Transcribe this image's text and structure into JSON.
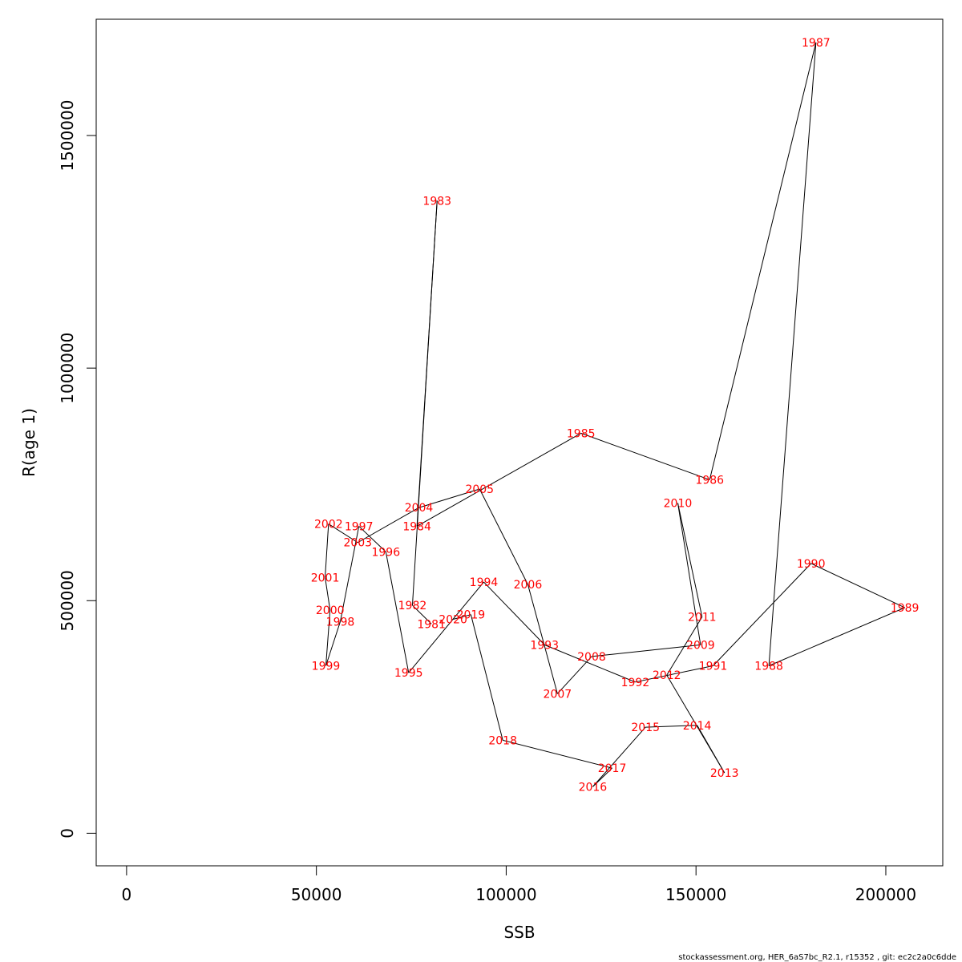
{
  "chart_data": {
    "type": "line",
    "xlabel": "SSB",
    "ylabel": "R(age 1)",
    "xlim": [
      -8000,
      215000
    ],
    "ylim": [
      -70000,
      1750000
    ],
    "xticks": [
      0,
      50000,
      100000,
      150000,
      200000
    ],
    "xtick_labels": [
      "0",
      "50000",
      "100000",
      "150000",
      "200000"
    ],
    "yticks": [
      0,
      500000,
      1000000,
      1500000
    ],
    "ytick_labels": [
      "0",
      "500000",
      "1000000",
      "1500000"
    ],
    "line_color": "#000000",
    "label_color": "#ff0000",
    "grid": false,
    "points": [
      {
        "year": "1981",
        "x": 80300,
        "y": 450000
      },
      {
        "year": "1982",
        "x": 75300,
        "y": 490000
      },
      {
        "year": "1983",
        "x": 81800,
        "y": 1360000
      },
      {
        "year": "1984",
        "x": 76500,
        "y": 660000
      },
      {
        "year": "1985",
        "x": 119700,
        "y": 860000
      },
      {
        "year": "1986",
        "x": 153600,
        "y": 760000
      },
      {
        "year": "1987",
        "x": 181600,
        "y": 1700000
      },
      {
        "year": "1988",
        "x": 169200,
        "y": 360000
      },
      {
        "year": "1989",
        "x": 205000,
        "y": 485000
      },
      {
        "year": "1990",
        "x": 180300,
        "y": 580000
      },
      {
        "year": "1991",
        "x": 154500,
        "y": 360000
      },
      {
        "year": "1992",
        "x": 134000,
        "y": 325000
      },
      {
        "year": "1993",
        "x": 110100,
        "y": 405000
      },
      {
        "year": "1994",
        "x": 94100,
        "y": 540000
      },
      {
        "year": "1995",
        "x": 74300,
        "y": 345000
      },
      {
        "year": "1996",
        "x": 68300,
        "y": 605000
      },
      {
        "year": "1997",
        "x": 61200,
        "y": 660000
      },
      {
        "year": "1998",
        "x": 56300,
        "y": 455000
      },
      {
        "year": "1999",
        "x": 52500,
        "y": 360000
      },
      {
        "year": "2000",
        "x": 53600,
        "y": 480000
      },
      {
        "year": "2001",
        "x": 52300,
        "y": 550000
      },
      {
        "year": "2002",
        "x": 53200,
        "y": 665000
      },
      {
        "year": "2003",
        "x": 60900,
        "y": 625000
      },
      {
        "year": "2004",
        "x": 77000,
        "y": 700000
      },
      {
        "year": "2005",
        "x": 93000,
        "y": 740000
      },
      {
        "year": "2006",
        "x": 105700,
        "y": 535000
      },
      {
        "year": "2007",
        "x": 113500,
        "y": 300000
      },
      {
        "year": "2008",
        "x": 122500,
        "y": 380000
      },
      {
        "year": "2009",
        "x": 151200,
        "y": 405000
      },
      {
        "year": "2010",
        "x": 145200,
        "y": 710000
      },
      {
        "year": "2011",
        "x": 151600,
        "y": 465000
      },
      {
        "year": "2012",
        "x": 142300,
        "y": 340000
      },
      {
        "year": "2013",
        "x": 157500,
        "y": 130000
      },
      {
        "year": "2014",
        "x": 150300,
        "y": 232000
      },
      {
        "year": "2015",
        "x": 136700,
        "y": 228000
      },
      {
        "year": "2016",
        "x": 122800,
        "y": 100000
      },
      {
        "year": "2017",
        "x": 127900,
        "y": 140000
      },
      {
        "year": "2018",
        "x": 99100,
        "y": 200000
      },
      {
        "year": "2019",
        "x": 90700,
        "y": 470000
      },
      {
        "year": "2020",
        "x": 86000,
        "y": 460000
      }
    ]
  },
  "footer": "stockassessment.org, HER_6aS7bc_R2.1, r15352 , git: ec2c2a0c6dde"
}
